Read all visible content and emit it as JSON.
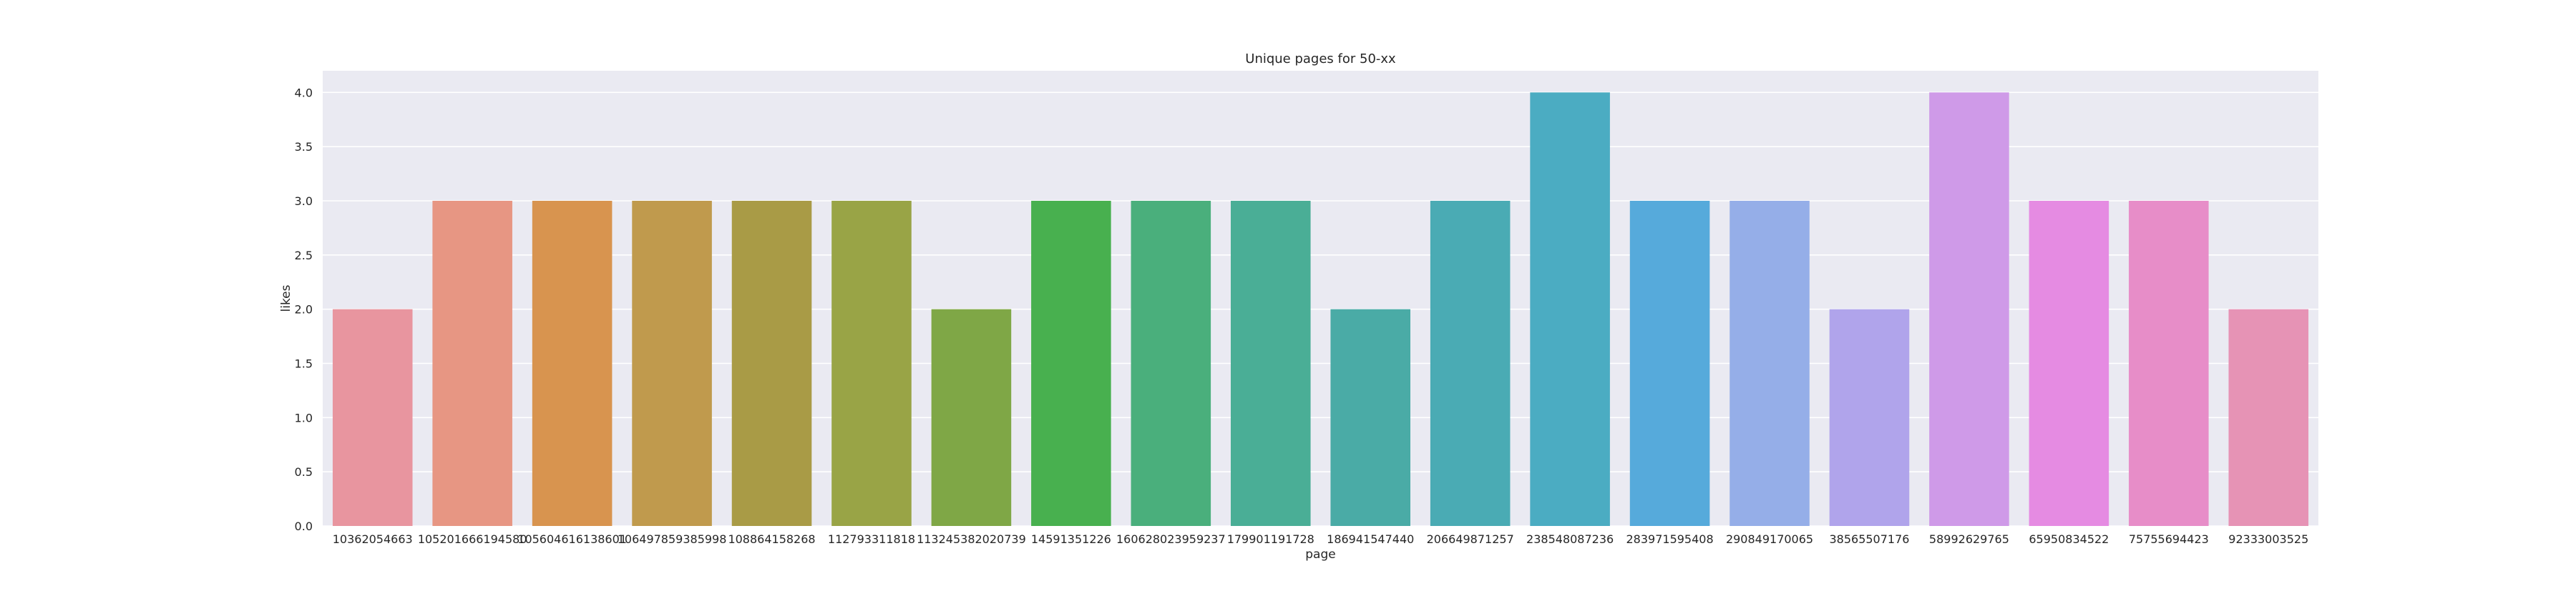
{
  "chart_data": {
    "type": "bar",
    "title": "Unique pages for 50-xx",
    "xlabel": "page",
    "ylabel": "likes",
    "ylim": [
      0,
      4.2
    ],
    "yticks": [
      0.0,
      0.5,
      1.0,
      1.5,
      2.0,
      2.5,
      3.0,
      3.5,
      4.0
    ],
    "ytick_labels": [
      "0.0",
      "0.5",
      "1.0",
      "1.5",
      "2.0",
      "2.5",
      "3.0",
      "3.5",
      "4.0"
    ],
    "grid": true,
    "categories": [
      "10362054663",
      "105201666194580",
      "105604616138601",
      "106497859385998",
      "108864158268",
      "112793311818",
      "113245382020739",
      "14591351226",
      "160628023959237",
      "179901191728",
      "186941547440",
      "206649871257",
      "238548087236",
      "283971595408",
      "290849170065",
      "38565507176",
      "58992629765",
      "65950834522",
      "75755694423",
      "92333003525"
    ],
    "values": [
      2,
      3,
      3,
      3,
      3,
      3,
      2,
      3,
      3,
      3,
      2,
      3,
      4,
      3,
      3,
      2,
      4,
      3,
      3,
      2
    ],
    "colors": [
      "#e8959f",
      "#e79683",
      "#d8944f",
      "#c09a4d",
      "#a99b46",
      "#99a446",
      "#7fa746",
      "#48b04f",
      "#4aaf7c",
      "#4aae96",
      "#4aaba6",
      "#4aabb4",
      "#4bacc2",
      "#56aadb",
      "#95aee8",
      "#b0a4eb",
      "#cf9ae8",
      "#e58be2",
      "#e78dc8",
      "#e693b5"
    ],
    "background": "#eaeaf2",
    "grid_color": "#ffffff"
  }
}
